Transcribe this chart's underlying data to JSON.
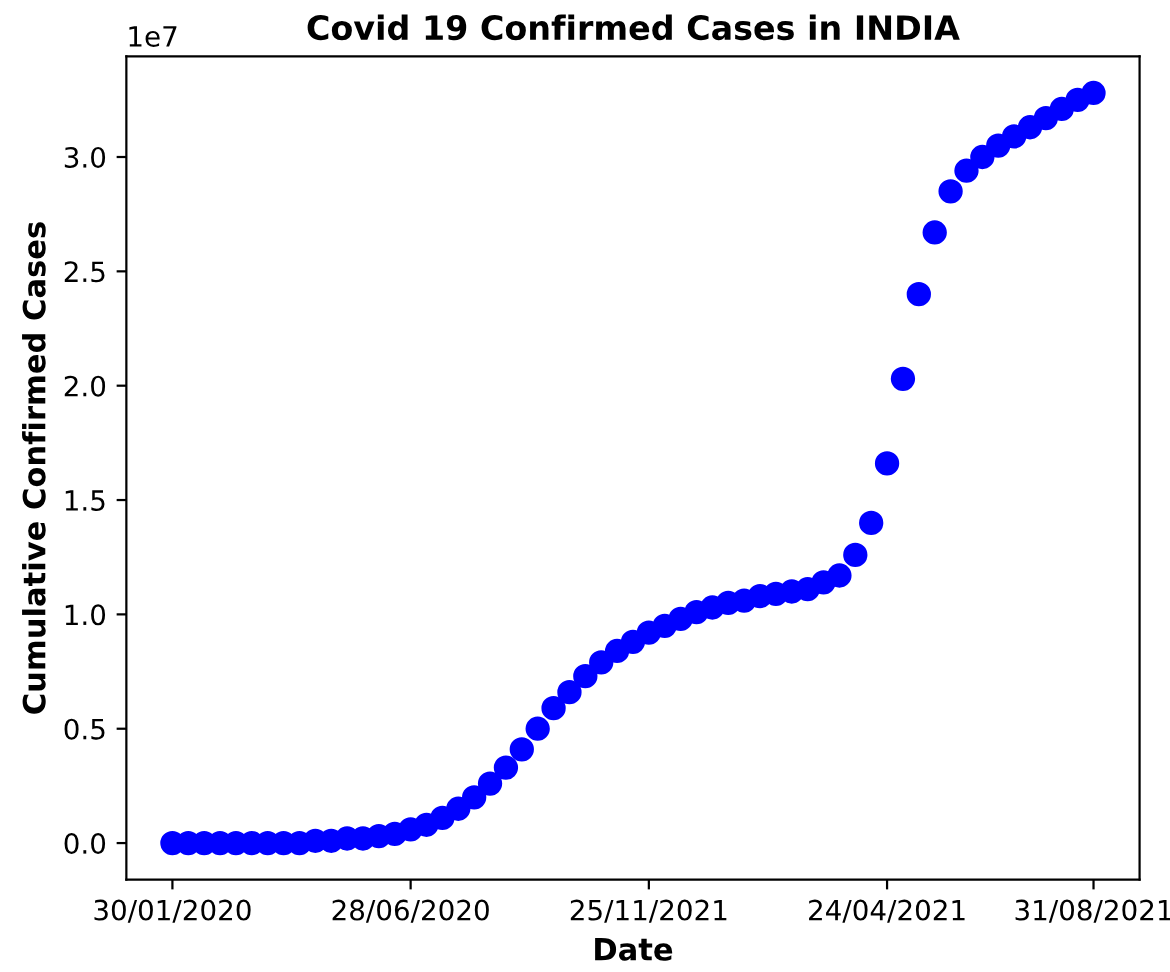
{
  "chart_data": {
    "type": "scatter",
    "title": "Covid 19 Confirmed Cases in INDIA",
    "xlabel": "Date",
    "ylabel": "Cumulative Confirmed Cases",
    "categories": [
      "30/01/2020",
      null,
      null,
      null,
      null,
      null,
      null,
      null,
      null,
      null,
      null,
      null,
      null,
      null,
      null,
      "28/06/2020",
      null,
      null,
      null,
      null,
      null,
      null,
      null,
      null,
      null,
      null,
      null,
      null,
      null,
      null,
      "25/11/2021",
      null,
      null,
      null,
      null,
      null,
      null,
      null,
      null,
      null,
      null,
      null,
      null,
      null,
      null,
      "24/04/2021",
      null,
      null,
      null,
      null,
      null,
      null,
      null,
      null,
      null,
      null,
      null,
      null,
      "31/08/2021"
    ],
    "series": [
      {
        "color": "#0000ff",
        "values": [
          0,
          0,
          0,
          0,
          0,
          0,
          0,
          0,
          0,
          0.01,
          0.01,
          0.02,
          0.02,
          0.03,
          0.04,
          0.06,
          0.08,
          0.11,
          0.15,
          0.2,
          0.26,
          0.33,
          0.41,
          0.5,
          0.59,
          0.66,
          0.73,
          0.79,
          0.84,
          0.88,
          0.92,
          0.95,
          0.98,
          1.01,
          1.03,
          1.05,
          1.06,
          1.08,
          1.09,
          1.1,
          1.11,
          1.14,
          1.17,
          1.26,
          1.4,
          1.66,
          2.03,
          2.4,
          2.67,
          2.85,
          2.94,
          3.0,
          3.05,
          3.09,
          3.13,
          3.17,
          3.21,
          3.25,
          3.28
        ]
      }
    ],
    "marker": "circle",
    "ylim": [
      -0.16,
      3.44
    ],
    "yticks": [
      {
        "value": 0,
        "label": "0.0"
      },
      0.5,
      {
        "value": 1,
        "label": "1.0"
      },
      1.5,
      {
        "value": 2,
        "label": "2.0"
      },
      2.5,
      {
        "value": 3,
        "label": "3.0"
      }
    ],
    "annotations": [
      "1e7"
    ],
    "grid": false,
    "legend": false
  }
}
